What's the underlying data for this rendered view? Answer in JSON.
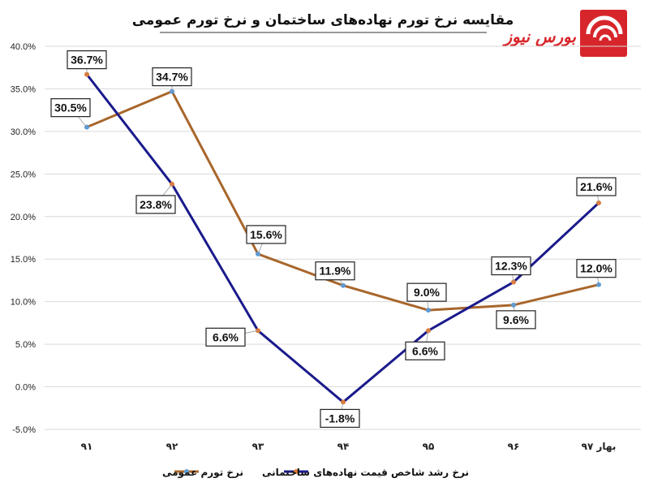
{
  "chart_data": {
    "type": "line",
    "title": "مقایسه نرخ تورم نهاده‌های ساختمان و نرخ تورم عمومی",
    "categories": [
      "۹۱",
      "۹۲",
      "۹۳",
      "۹۴",
      "۹۵",
      "۹۶",
      "بهار ۹۷"
    ],
    "ylim": [
      -5,
      40
    ],
    "y_ticks": [
      -5,
      0,
      5,
      10,
      15,
      20,
      25,
      30,
      35,
      40
    ],
    "y_tick_labels": [
      "-5.0%",
      "0.0%",
      "5.0%",
      "10.0%",
      "15.0%",
      "20.0%",
      "25.0%",
      "30.0%",
      "35.0%",
      "40.0%"
    ],
    "grid": true,
    "legend_position": "bottom",
    "series": [
      {
        "name": "نرخ تورم عمومی",
        "color": "#a8662b",
        "marker_color": "#5b9bd5",
        "values": [
          30.5,
          34.7,
          15.6,
          11.9,
          9.0,
          9.6,
          12.0
        ],
        "labels": [
          "30.5%",
          "34.7%",
          "15.6%",
          "11.9%",
          "9.0%",
          "9.6%",
          "12.0%"
        ]
      },
      {
        "name": "نرخ رشد شاخص قیمت نهاده‌های ساختمانی",
        "color": "#1a1a8c",
        "marker_color": "#e07b39",
        "values": [
          36.7,
          23.8,
          6.6,
          -1.8,
          6.6,
          12.3,
          21.6
        ],
        "labels": [
          "36.7%",
          "23.8%",
          "6.6%",
          "-1.8%",
          "6.6%",
          "12.3%",
          "21.6%"
        ]
      }
    ]
  },
  "logo": {
    "text": "بورس نیوز",
    "color": "#d7262b"
  }
}
